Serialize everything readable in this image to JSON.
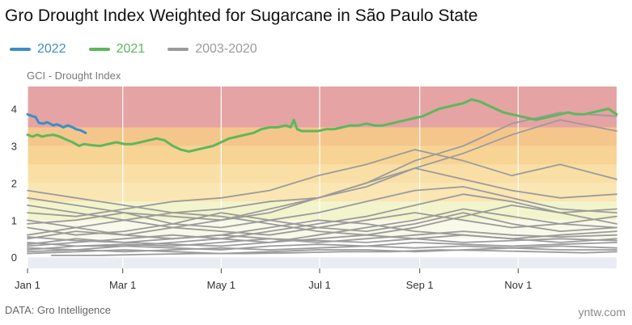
{
  "title": "Gro Drought Index Weighted for Sugarcane in São Paulo State",
  "source": "DATA: Gro Intelligence",
  "watermark": "yntw.com",
  "chart_data": {
    "type": "line",
    "title": "Gro Drought Index Weighted for Sugarcane in São Paulo State",
    "ylabel": "GCI - Drought Index",
    "xlabel": "",
    "x_unit": "day of year",
    "xlim": [
      0,
      365
    ],
    "ylim": [
      -0.3,
      4.6
    ],
    "yticks": [
      0,
      1,
      2,
      3,
      4
    ],
    "xticks": [
      {
        "label": "Jan 1",
        "day": 0
      },
      {
        "label": "Mar 1",
        "day": 59
      },
      {
        "label": "May 1",
        "day": 120
      },
      {
        "label": "Jul 1",
        "day": 181
      },
      {
        "label": "Sep 1",
        "day": 243
      },
      {
        "label": "Nov 1",
        "day": 304
      }
    ],
    "grid": true,
    "legend": "top-left",
    "bands": [
      {
        "from": -0.3,
        "to": 0,
        "color": "#e9ecf3"
      },
      {
        "from": 0,
        "to": 0.5,
        "color": "#ffffff"
      },
      {
        "from": 0.5,
        "to": 1.0,
        "color": "#f8f9e8"
      },
      {
        "from": 1.0,
        "to": 1.5,
        "color": "#f2f5cc"
      },
      {
        "from": 1.5,
        "to": 2.0,
        "color": "#fae6b3"
      },
      {
        "from": 2.0,
        "to": 2.5,
        "color": "#f9dfa6"
      },
      {
        "from": 2.5,
        "to": 3.0,
        "color": "#f7d494"
      },
      {
        "from": 3.0,
        "to": 3.5,
        "color": "#f5c68c"
      },
      {
        "from": 3.5,
        "to": 4.6,
        "color": "#e5a3a3"
      }
    ],
    "series": [
      {
        "name": "2022",
        "color": "#3b8fc6",
        "width": 3,
        "x": [
          0,
          3,
          5,
          7,
          10,
          12,
          14,
          16,
          18,
          20,
          22,
          25,
          28,
          30,
          33,
          36
        ],
        "y": [
          3.85,
          3.8,
          3.78,
          3.62,
          3.6,
          3.64,
          3.6,
          3.55,
          3.58,
          3.55,
          3.5,
          3.55,
          3.5,
          3.45,
          3.42,
          3.35
        ]
      },
      {
        "name": "2021",
        "color": "#5cb85c",
        "width": 3,
        "x": [
          0,
          3,
          6,
          9,
          12,
          16,
          20,
          25,
          28,
          30,
          32,
          35,
          40,
          45,
          50,
          55,
          60,
          65,
          70,
          75,
          80,
          85,
          90,
          95,
          100,
          105,
          110,
          115,
          120,
          125,
          130,
          135,
          140,
          145,
          150,
          155,
          160,
          163,
          165,
          167,
          170,
          175,
          180,
          185,
          190,
          195,
          200,
          205,
          210,
          215,
          220,
          225,
          230,
          235,
          240,
          245,
          250,
          255,
          260,
          265,
          270,
          275,
          280,
          285,
          290,
          295,
          300,
          305,
          310,
          315,
          320,
          325,
          330,
          335,
          340,
          345,
          350,
          355,
          360,
          365
        ],
        "y": [
          3.3,
          3.25,
          3.3,
          3.25,
          3.28,
          3.3,
          3.25,
          3.15,
          3.1,
          3.05,
          3.0,
          3.05,
          3.02,
          3.0,
          3.05,
          3.1,
          3.05,
          3.05,
          3.1,
          3.15,
          3.2,
          3.15,
          3.0,
          2.9,
          2.85,
          2.9,
          2.95,
          3.0,
          3.1,
          3.2,
          3.25,
          3.3,
          3.35,
          3.45,
          3.5,
          3.5,
          3.55,
          3.5,
          3.7,
          3.45,
          3.4,
          3.4,
          3.4,
          3.45,
          3.45,
          3.5,
          3.55,
          3.55,
          3.6,
          3.55,
          3.55,
          3.6,
          3.65,
          3.7,
          3.75,
          3.8,
          3.9,
          4.0,
          4.05,
          4.1,
          4.15,
          4.25,
          4.2,
          4.1,
          4.0,
          3.9,
          3.85,
          3.8,
          3.75,
          3.7,
          3.75,
          3.8,
          3.85,
          3.9,
          3.85,
          3.85,
          3.9,
          3.95,
          4.0,
          3.85
        ]
      },
      {
        "name": "2003-2020",
        "color": "#9b9b9b",
        "width": 1.8,
        "lines": [
          {
            "x": [
              0,
              30,
              60,
              90,
              120,
              150,
              180,
              210,
              240,
              270,
              300,
              330,
              365
            ],
            "y": [
              1.8,
              1.6,
              1.4,
              1.2,
              1.3,
              1.5,
              1.6,
              1.9,
              2.4,
              2.8,
              3.3,
              3.7,
              3.4
            ]
          },
          {
            "x": [
              0,
              30,
              60,
              90,
              120,
              150,
              180,
              210,
              240,
              270,
              300,
              330,
              365
            ],
            "y": [
              0.5,
              0.7,
              0.6,
              0.8,
              1.0,
              1.2,
              1.6,
              2.0,
              2.6,
              3.0,
              3.6,
              3.9,
              3.8
            ]
          },
          {
            "x": [
              0,
              30,
              60,
              90,
              120,
              150,
              180,
              210,
              240,
              270,
              300,
              330,
              365
            ],
            "y": [
              1.2,
              1.1,
              1.3,
              1.5,
              1.6,
              1.8,
              2.2,
              2.5,
              2.9,
              2.6,
              2.2,
              2.5,
              2.1
            ]
          },
          {
            "x": [
              0,
              30,
              60,
              90,
              120,
              150,
              180,
              210,
              240,
              270,
              300,
              330,
              365
            ],
            "y": [
              1.6,
              1.4,
              1.2,
              1.1,
              1.0,
              1.3,
              1.6,
              2.0,
              2.4,
              2.1,
              1.8,
              1.6,
              1.7
            ]
          },
          {
            "x": [
              0,
              30,
              60,
              90,
              120,
              150,
              180,
              210,
              240,
              270,
              300,
              330,
              365
            ],
            "y": [
              0.9,
              1.0,
              1.2,
              0.9,
              0.8,
              1.0,
              1.2,
              1.5,
              1.8,
              1.9,
              1.6,
              1.3,
              1.2
            ]
          },
          {
            "x": [
              0,
              30,
              60,
              90,
              120,
              150,
              180,
              210,
              240,
              270,
              300,
              330,
              365
            ],
            "y": [
              0.3,
              0.4,
              0.5,
              0.6,
              0.5,
              0.7,
              0.9,
              1.1,
              1.4,
              1.7,
              1.5,
              1.2,
              1.3
            ]
          },
          {
            "x": [
              0,
              30,
              60,
              90,
              120,
              150,
              180,
              210,
              240,
              270,
              300,
              330,
              365
            ],
            "y": [
              1.4,
              1.2,
              1.0,
              0.8,
              0.7,
              0.6,
              0.8,
              1.0,
              1.2,
              1.0,
              0.8,
              0.9,
              1.1
            ]
          },
          {
            "x": [
              0,
              30,
              60,
              90,
              120,
              150,
              180,
              210,
              240,
              270,
              300,
              330,
              365
            ],
            "y": [
              0.6,
              0.8,
              1.0,
              1.2,
              1.1,
              0.9,
              0.7,
              0.6,
              0.8,
              1.1,
              1.4,
              1.2,
              0.9
            ]
          },
          {
            "x": [
              0,
              30,
              60,
              90,
              120,
              150,
              180,
              210,
              240,
              270,
              300,
              330,
              365
            ],
            "y": [
              0.2,
              0.3,
              0.3,
              0.4,
              0.5,
              0.4,
              0.6,
              0.8,
              1.0,
              1.3,
              1.1,
              0.9,
              0.8
            ]
          },
          {
            "x": [
              0,
              30,
              60,
              90,
              120,
              150,
              180,
              210,
              240,
              270,
              300,
              330,
              365
            ],
            "y": [
              1.0,
              0.8,
              0.6,
              0.5,
              0.6,
              0.8,
              1.0,
              0.9,
              0.7,
              0.6,
              0.5,
              0.6,
              0.7
            ]
          },
          {
            "x": [
              0,
              30,
              60,
              90,
              120,
              150,
              180,
              210,
              240,
              270,
              300,
              330,
              365
            ],
            "y": [
              0.4,
              0.3,
              0.35,
              0.3,
              0.4,
              0.5,
              0.45,
              0.4,
              0.5,
              0.6,
              0.5,
              0.4,
              0.5
            ]
          },
          {
            "x": [
              0,
              30,
              60,
              90,
              120,
              150,
              180,
              210,
              240,
              270,
              300,
              330,
              365
            ],
            "y": [
              0.25,
              0.2,
              0.3,
              0.25,
              0.2,
              0.3,
              0.35,
              0.3,
              0.4,
              0.35,
              0.3,
              0.35,
              0.4
            ]
          },
          {
            "x": [
              0,
              30,
              60,
              90,
              120,
              150,
              180,
              210,
              240,
              270,
              300,
              330,
              365
            ],
            "y": [
              0.15,
              0.2,
              0.15,
              0.2,
              0.25,
              0.2,
              0.25,
              0.3,
              0.25,
              0.3,
              0.25,
              0.3,
              0.25
            ]
          },
          {
            "x": [
              0,
              30,
              60,
              90,
              120,
              150,
              180,
              210,
              240,
              270,
              300,
              330,
              365
            ],
            "y": [
              0.55,
              0.45,
              0.4,
              0.5,
              0.6,
              0.5,
              0.4,
              0.5,
              0.6,
              0.7,
              0.6,
              0.55,
              0.6
            ]
          },
          {
            "x": [
              0,
              30,
              60,
              90,
              120,
              150,
              180,
              210,
              240,
              270,
              300,
              330,
              365
            ],
            "y": [
              0.1,
              0.15,
              0.2,
              0.15,
              0.1,
              0.15,
              0.2,
              0.2,
              0.15,
              0.2,
              0.25,
              0.2,
              0.2
            ]
          },
          {
            "x": [
              0,
              30,
              60,
              90,
              120,
              150,
              180,
              210,
              240,
              270,
              300,
              330,
              365
            ],
            "y": [
              0.8,
              0.6,
              0.7,
              0.9,
              1.2,
              1.0,
              0.8,
              0.7,
              0.9,
              1.2,
              0.9,
              0.7,
              0.8
            ]
          },
          {
            "x": [
              0,
              30,
              60,
              90,
              120,
              150,
              180,
              210,
              240,
              270,
              300,
              330,
              365
            ],
            "y": [
              0.35,
              0.5,
              0.4,
              0.35,
              0.3,
              0.4,
              0.5,
              0.6,
              0.5,
              0.4,
              0.45,
              0.5,
              0.45
            ]
          },
          {
            "x": [
              15,
              45,
              75,
              105,
              135,
              165,
              195,
              225,
              255,
              285,
              315,
              345,
              365
            ],
            "y": [
              0.05,
              0.05,
              0.08,
              0.1,
              0.1,
              0.12,
              0.15,
              0.15,
              0.2,
              0.18,
              0.15,
              0.12,
              0.15
            ]
          }
        ]
      }
    ]
  }
}
